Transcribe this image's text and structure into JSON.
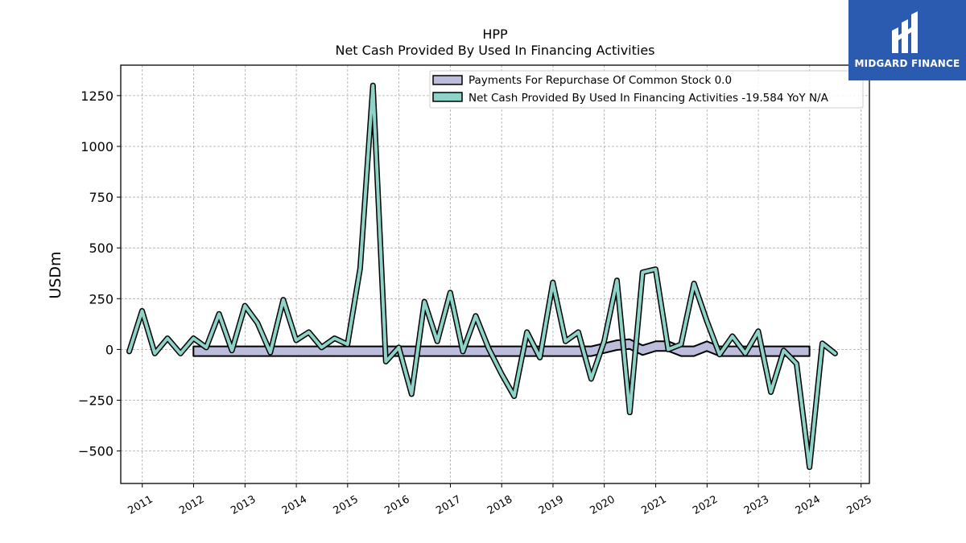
{
  "logo": {
    "text": "MIDGARD FINANCE",
    "icon": "midgard-logo-icon",
    "color": "#2a5bb0"
  },
  "chart_data": {
    "type": "line",
    "title": "HPP",
    "subtitle": "Net Cash Provided By Used In Financing Activities",
    "ylabel": "USDm",
    "xlabel": "",
    "ylim": [
      -660,
      1400
    ],
    "xlim": [
      "2010-08-01",
      "2025-03-01"
    ],
    "yticks": [
      -500,
      -250,
      0,
      250,
      500,
      750,
      1000,
      1250
    ],
    "ytick_labels": [
      "−500",
      "−250",
      "0",
      "250",
      "500",
      "750",
      "1000",
      "1250"
    ],
    "xticks": [
      "2011",
      "2012",
      "2013",
      "2014",
      "2015",
      "2016",
      "2017",
      "2018",
      "2019",
      "2020",
      "2021",
      "2022",
      "2023",
      "2024",
      "2025"
    ],
    "grid": true,
    "legend_position": "top-right",
    "legend": [
      "Payments For Repurchase Of Common Stock  0.0",
      "Net Cash Provided By Used In Financing Activities  -19.584 YoY N/A"
    ],
    "series": [
      {
        "name": "Payments For Repurchase Of Common Stock",
        "color": "#bcbddc",
        "style": "band",
        "points": [
          [
            "2011-12-31",
            15
          ],
          [
            "2012-03-31",
            15
          ],
          [
            "2012-06-30",
            15
          ],
          [
            "2012-09-30",
            15
          ],
          [
            "2012-12-31",
            15
          ],
          [
            "2013-03-31",
            15
          ],
          [
            "2013-06-30",
            15
          ],
          [
            "2013-09-30",
            15
          ],
          [
            "2013-12-31",
            15
          ],
          [
            "2014-03-31",
            15
          ],
          [
            "2014-06-30",
            15
          ],
          [
            "2014-09-30",
            15
          ],
          [
            "2014-12-31",
            15
          ],
          [
            "2015-03-31",
            15
          ],
          [
            "2015-06-30",
            15
          ],
          [
            "2015-09-30",
            15
          ],
          [
            "2015-12-31",
            15
          ],
          [
            "2016-03-31",
            15
          ],
          [
            "2016-06-30",
            15
          ],
          [
            "2016-09-30",
            15
          ],
          [
            "2016-12-31",
            15
          ],
          [
            "2017-03-31",
            15
          ],
          [
            "2017-06-30",
            15
          ],
          [
            "2017-09-30",
            15
          ],
          [
            "2017-12-31",
            15
          ],
          [
            "2018-03-31",
            15
          ],
          [
            "2018-06-30",
            15
          ],
          [
            "2018-09-30",
            15
          ],
          [
            "2018-12-31",
            15
          ],
          [
            "2019-03-31",
            15
          ],
          [
            "2019-06-30",
            15
          ],
          [
            "2019-09-30",
            15
          ],
          [
            "2019-12-31",
            30
          ],
          [
            "2020-03-31",
            45
          ],
          [
            "2020-06-30",
            50
          ],
          [
            "2020-09-30",
            20
          ],
          [
            "2020-12-31",
            40
          ],
          [
            "2021-03-31",
            40
          ],
          [
            "2021-06-30",
            15
          ],
          [
            "2021-09-30",
            15
          ],
          [
            "2021-12-31",
            40
          ],
          [
            "2022-03-31",
            15
          ],
          [
            "2022-06-30",
            15
          ],
          [
            "2022-09-30",
            15
          ],
          [
            "2022-12-31",
            15
          ],
          [
            "2023-03-31",
            15
          ],
          [
            "2023-06-30",
            15
          ],
          [
            "2023-09-30",
            15
          ],
          [
            "2023-12-31",
            15
          ]
        ]
      },
      {
        "name": "Net Cash Provided By Used In Financing Activities",
        "color": "#8dd3c7",
        "style": "line",
        "points": [
          [
            "2010-09-30",
            -10
          ],
          [
            "2010-12-31",
            190
          ],
          [
            "2011-03-31",
            -20
          ],
          [
            "2011-06-30",
            55
          ],
          [
            "2011-09-30",
            -20
          ],
          [
            "2011-12-31",
            55
          ],
          [
            "2012-03-31",
            10
          ],
          [
            "2012-06-30",
            175
          ],
          [
            "2012-09-30",
            -5
          ],
          [
            "2012-12-31",
            215
          ],
          [
            "2013-03-31",
            130
          ],
          [
            "2013-06-30",
            -15
          ],
          [
            "2013-09-30",
            245
          ],
          [
            "2013-12-31",
            45
          ],
          [
            "2014-03-31",
            85
          ],
          [
            "2014-06-30",
            10
          ],
          [
            "2014-09-30",
            55
          ],
          [
            "2014-12-31",
            25
          ],
          [
            "2015-03-31",
            400
          ],
          [
            "2015-06-30",
            1300
          ],
          [
            "2015-09-30",
            -60
          ],
          [
            "2015-12-31",
            10
          ],
          [
            "2016-03-31",
            -220
          ],
          [
            "2016-06-30",
            235
          ],
          [
            "2016-09-30",
            40
          ],
          [
            "2016-12-31",
            280
          ],
          [
            "2017-03-31",
            -10
          ],
          [
            "2017-06-30",
            165
          ],
          [
            "2017-09-30",
            5
          ],
          [
            "2017-12-31",
            -120
          ],
          [
            "2018-03-31",
            -230
          ],
          [
            "2018-06-30",
            85
          ],
          [
            "2018-09-30",
            -40
          ],
          [
            "2018-12-31",
            330
          ],
          [
            "2019-03-31",
            40
          ],
          [
            "2019-06-30",
            85
          ],
          [
            "2019-09-30",
            -145
          ],
          [
            "2019-12-31",
            40
          ],
          [
            "2020-03-31",
            340
          ],
          [
            "2020-06-30",
            -310
          ],
          [
            "2020-09-30",
            380
          ],
          [
            "2020-12-31",
            395
          ],
          [
            "2021-03-31",
            0
          ],
          [
            "2021-06-30",
            25
          ],
          [
            "2021-09-30",
            325
          ],
          [
            "2021-12-31",
            140
          ],
          [
            "2022-03-31",
            -25
          ],
          [
            "2022-06-30",
            65
          ],
          [
            "2022-09-30",
            -20
          ],
          [
            "2022-12-31",
            90
          ],
          [
            "2023-03-31",
            -210
          ],
          [
            "2023-06-30",
            -5
          ],
          [
            "2023-09-30",
            -70
          ],
          [
            "2023-12-31",
            -580
          ],
          [
            "2024-03-31",
            30
          ],
          [
            "2024-06-30",
            -20
          ]
        ]
      }
    ]
  }
}
